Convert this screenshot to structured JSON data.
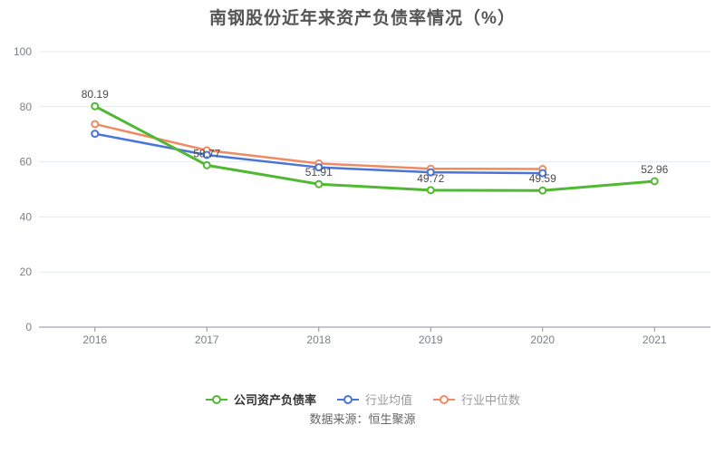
{
  "chart_data": {
    "type": "line",
    "title": "南钢股份近年来资产负债率情况（%）",
    "categories": [
      "2016",
      "2017",
      "2018",
      "2019",
      "2020",
      "2021"
    ],
    "series": [
      {
        "name": "公司资产负债率",
        "color": "#50b832",
        "values": [
          80.19,
          58.77,
          51.91,
          49.72,
          49.59,
          52.96
        ],
        "show_labels": true,
        "label_color": "#333333"
      },
      {
        "name": "行业均值",
        "color": "#4a74d8",
        "values": [
          70.2,
          62.5,
          58.0,
          56.2,
          55.9,
          null
        ],
        "show_labels": false,
        "label_color": "#999999"
      },
      {
        "name": "行业中位数",
        "color": "#f08a63",
        "values": [
          73.7,
          64.2,
          59.4,
          57.5,
          57.4,
          null
        ],
        "show_labels": false,
        "label_color": "#999999"
      }
    ],
    "ylim": [
      0,
      100
    ],
    "yticks": [
      0,
      20,
      40,
      60,
      80,
      100
    ],
    "grid": true,
    "legend_position": "bottom",
    "source": "数据来源：恒生聚源"
  },
  "colors": {
    "grid_line": "#e4e9f4",
    "axis_line": "#8a909c",
    "tick_label": "#7a7f88",
    "data_label": "#4a4a4a",
    "title_text": "#555555",
    "source_text": "#666666"
  }
}
